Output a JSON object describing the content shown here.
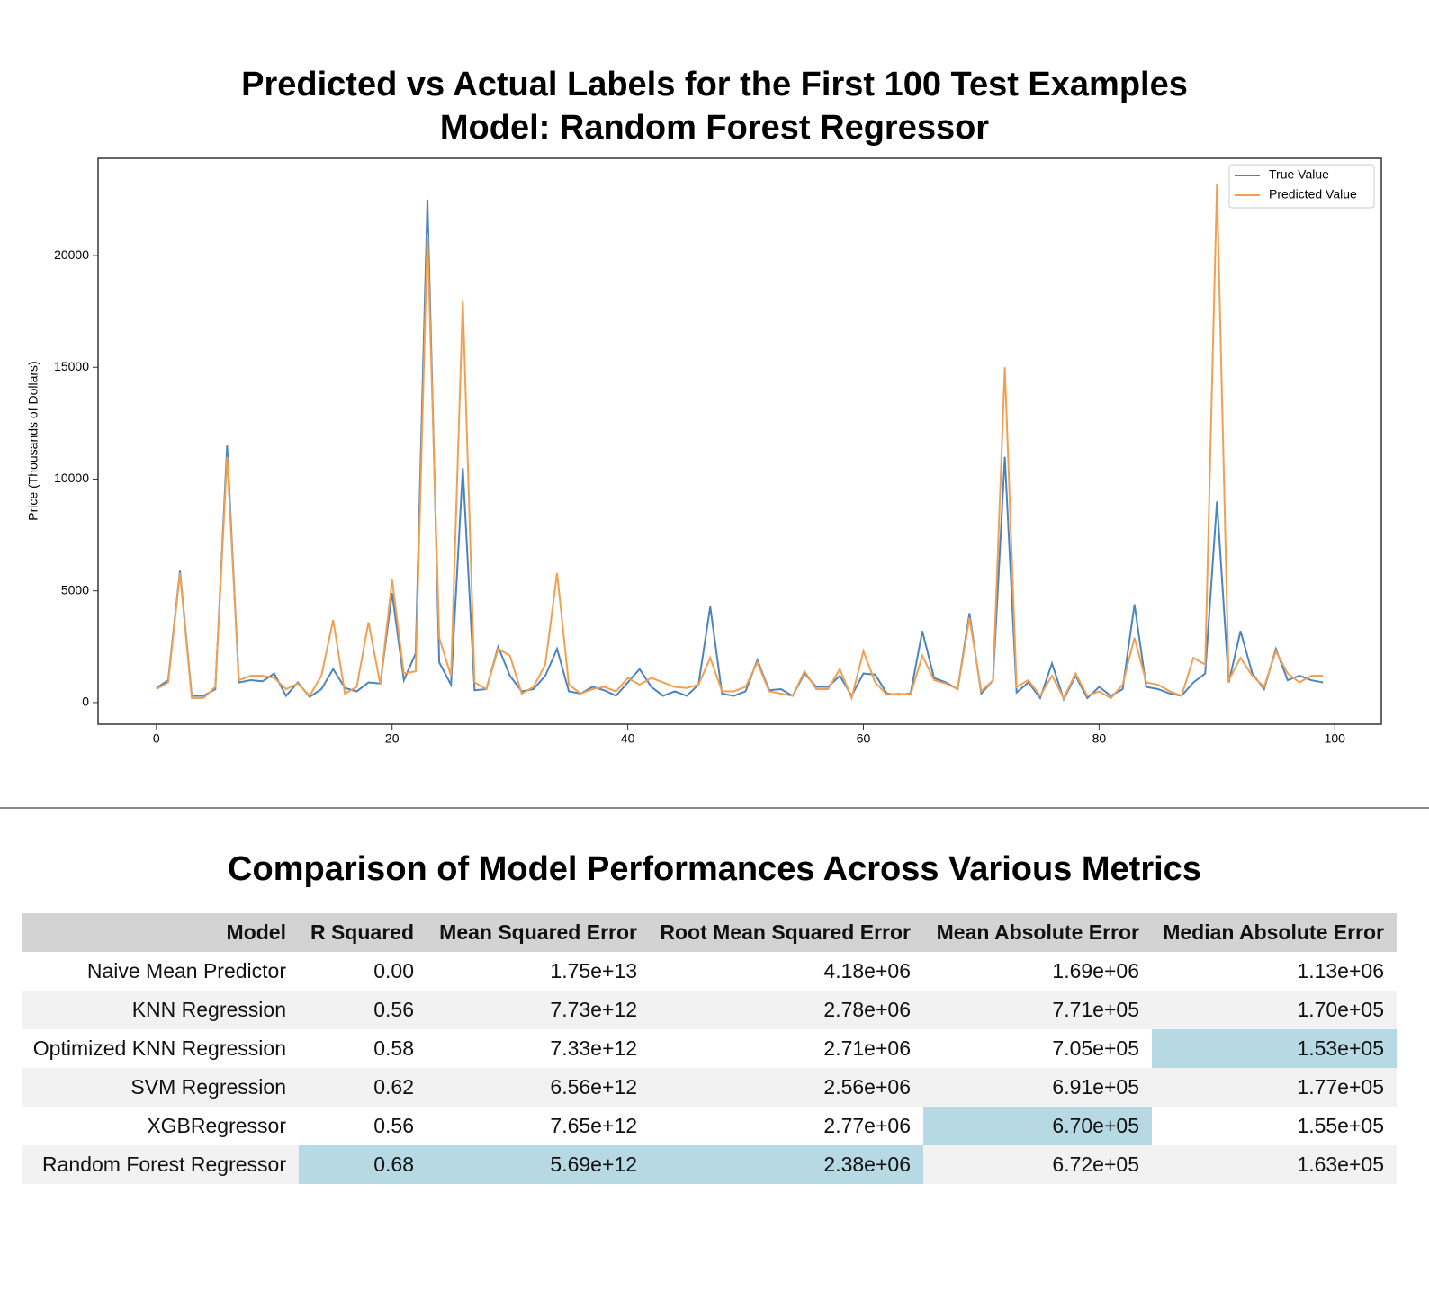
{
  "chart_data": {
    "type": "line",
    "title": "Predicted vs Actual Labels for the First 100 Test Examples",
    "subtitle": "Model: Random Forest Regressor",
    "y_label": "Price (Thousands of Dollars)",
    "x": [
      0,
      1,
      2,
      3,
      4,
      5,
      6,
      7,
      8,
      9,
      10,
      11,
      12,
      13,
      14,
      15,
      16,
      17,
      18,
      19,
      20,
      21,
      22,
      23,
      24,
      25,
      26,
      27,
      28,
      29,
      30,
      31,
      32,
      33,
      34,
      35,
      36,
      37,
      38,
      39,
      40,
      41,
      42,
      43,
      44,
      45,
      46,
      47,
      48,
      49,
      50,
      51,
      52,
      53,
      54,
      55,
      56,
      57,
      58,
      59,
      60,
      61,
      62,
      63,
      64,
      65,
      66,
      67,
      68,
      69,
      70,
      71,
      72,
      73,
      74,
      75,
      76,
      77,
      78,
      79,
      80,
      81,
      82,
      83,
      84,
      85,
      86,
      87,
      88,
      89,
      90,
      91,
      92,
      93,
      94,
      95,
      96,
      97,
      98,
      99
    ],
    "series": [
      {
        "name": "True Value",
        "color": "#4c84c0",
        "values": [
          650,
          1000,
          5900,
          300,
          300,
          600,
          11500,
          900,
          1000,
          950,
          1300,
          300,
          900,
          250,
          600,
          1500,
          650,
          500,
          900,
          850,
          4900,
          1000,
          2200,
          22500,
          1800,
          800,
          10500,
          550,
          600,
          2500,
          1200,
          500,
          600,
          1200,
          2400,
          500,
          400,
          700,
          550,
          300,
          900,
          1500,
          700,
          300,
          500,
          300,
          800,
          4300,
          400,
          300,
          500,
          1900,
          550,
          600,
          300,
          1300,
          700,
          700,
          1200,
          300,
          1300,
          1250,
          400,
          350,
          400,
          3200,
          1100,
          900,
          600,
          4000,
          400,
          1000,
          11000,
          450,
          900,
          200,
          1750,
          150,
          1200,
          200,
          700,
          300,
          600,
          4400,
          700,
          600,
          400,
          300,
          900,
          1300,
          9000,
          900,
          3200,
          1300,
          600,
          2400,
          1000,
          1200,
          1000,
          900
        ]
      },
      {
        "name": "Predicted Value",
        "color": "#f0a050",
        "values": [
          600,
          900,
          5800,
          200,
          200,
          700,
          11000,
          1000,
          1200,
          1200,
          1100,
          600,
          850,
          300,
          1200,
          3700,
          400,
          700,
          3600,
          800,
          5500,
          1300,
          1400,
          21000,
          2900,
          1200,
          18000,
          900,
          600,
          2400,
          2100,
          400,
          700,
          1700,
          5800,
          800,
          400,
          600,
          700,
          500,
          1100,
          800,
          1100,
          900,
          700,
          650,
          800,
          2000,
          500,
          500,
          700,
          1800,
          500,
          400,
          300,
          1400,
          600,
          600,
          1500,
          200,
          2300,
          900,
          350,
          400,
          350,
          2100,
          1000,
          850,
          600,
          3800,
          500,
          1000,
          15000,
          700,
          1000,
          300,
          1200,
          200,
          1300,
          300,
          500,
          200,
          800,
          2900,
          900,
          800,
          500,
          300,
          2000,
          1700,
          23200,
          1000,
          2000,
          1200,
          700,
          2300,
          1300,
          900,
          1200,
          1200
        ]
      }
    ],
    "xlim": [
      -4.95,
      103.95
    ],
    "xticks": [
      0,
      20,
      40,
      60,
      80,
      100
    ],
    "ylim": [
      -970,
      24350
    ],
    "yticks": [
      0,
      5000,
      10000,
      15000,
      20000
    ],
    "grid": false,
    "legend": "upper right"
  },
  "table": {
    "title": "Comparison of Model Performances Across Various Metrics",
    "columns": [
      "Model",
      "R Squared",
      "Mean Squared Error",
      "Root Mean Squared Error",
      "Mean Absolute Error",
      "Median Absolute Error"
    ],
    "rows": [
      [
        "Naive Mean Predictor",
        "0.00",
        "1.75e+13",
        "4.18e+06",
        "1.69e+06",
        "1.13e+06"
      ],
      [
        "KNN Regression",
        "0.56",
        "7.73e+12",
        "2.78e+06",
        "7.71e+05",
        "1.70e+05"
      ],
      [
        "Optimized KNN Regression",
        "0.58",
        "7.33e+12",
        "2.71e+06",
        "7.05e+05",
        "1.53e+05"
      ],
      [
        "SVM Regression",
        "0.62",
        "6.56e+12",
        "2.56e+06",
        "6.91e+05",
        "1.77e+05"
      ],
      [
        "XGBRegressor",
        "0.56",
        "7.65e+12",
        "2.77e+06",
        "6.70e+05",
        "1.55e+05"
      ],
      [
        "Random Forest Regressor",
        "0.68",
        "5.69e+12",
        "2.38e+06",
        "6.72e+05",
        "1.63e+05"
      ]
    ],
    "highlight_color": "#b7d9e4",
    "highlighted": [
      [
        2,
        5
      ],
      [
        4,
        4
      ],
      [
        5,
        1
      ],
      [
        5,
        2
      ],
      [
        5,
        3
      ]
    ]
  }
}
